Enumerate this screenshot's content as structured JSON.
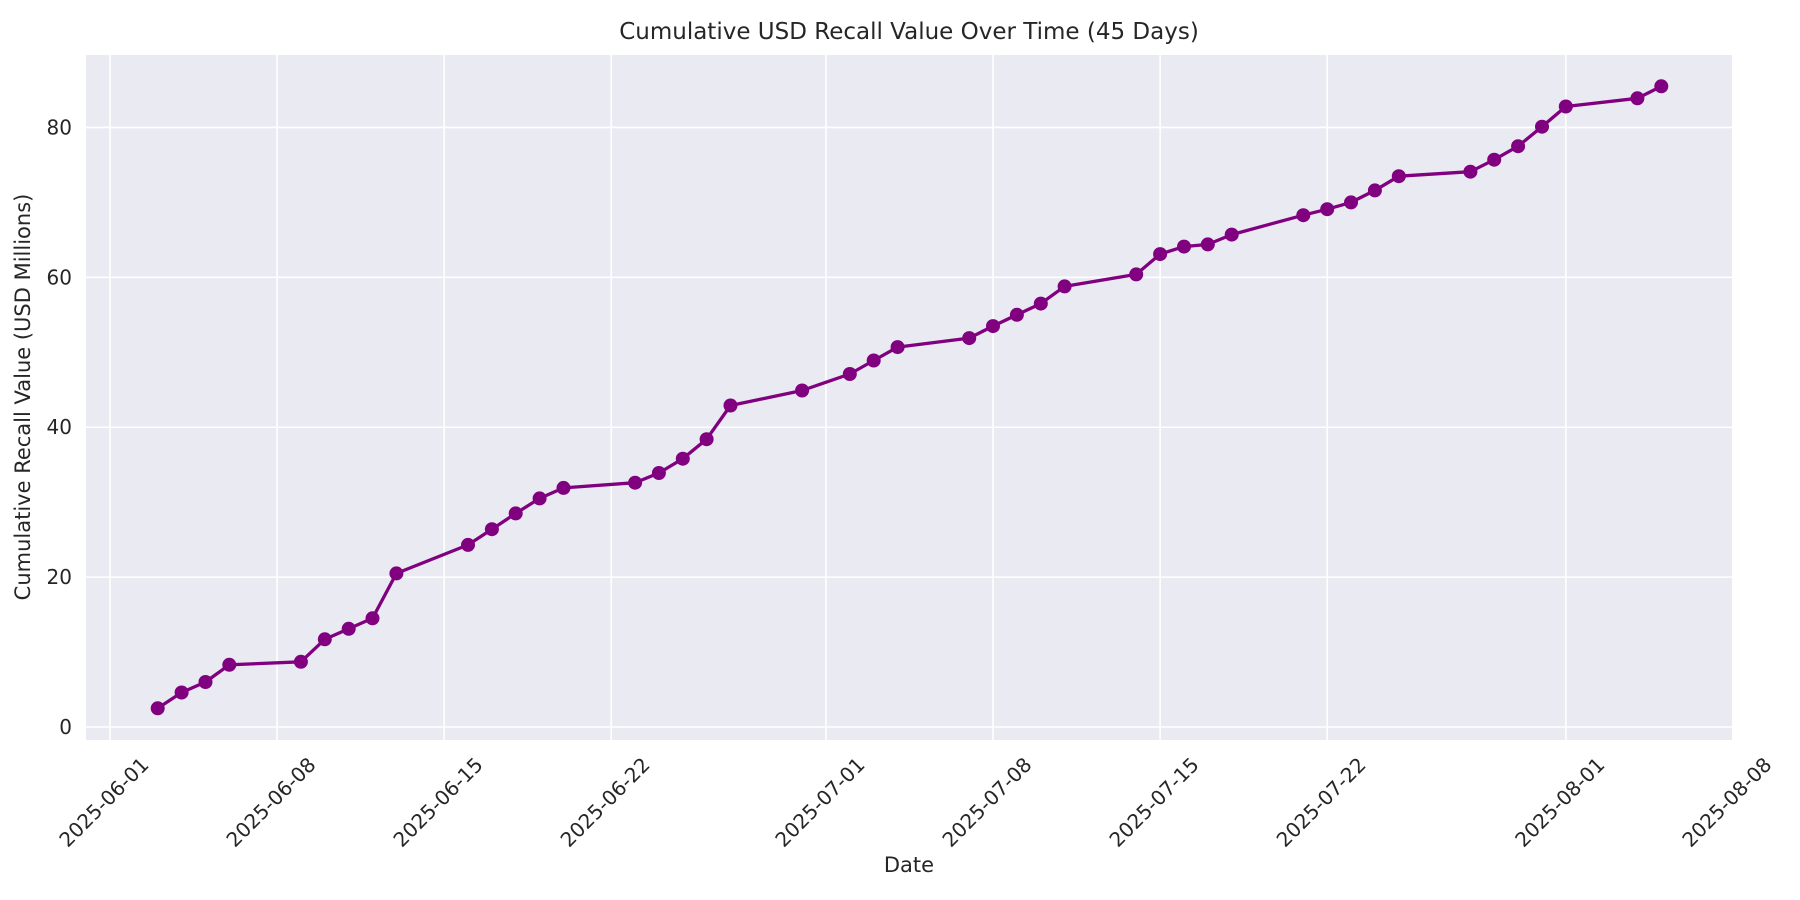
{
  "figure": {
    "title": "Cumulative USD Recall Value Over Time (45 Days)",
    "xlabel": "Date",
    "ylabel": "Cumulative Recall Value (USD Millions)"
  },
  "chart_data": {
    "type": "line",
    "title": "Cumulative USD Recall Value Over Time (45 Days)",
    "xlabel": "Date",
    "ylabel": "Cumulative Recall Value (USD Millions)",
    "grid": true,
    "legend": false,
    "style": "seaborn-darkgrid",
    "colors": {
      "line": "#800080",
      "marker": "#800080",
      "plot_background": "#EAEAF2",
      "gridline": "#FFFFFF",
      "text": "#262626",
      "figure_background": "#FFFFFF"
    },
    "x_tick_labels": [
      "2025-06-01",
      "2025-06-08",
      "2025-06-15",
      "2025-06-22",
      "2025-07-01",
      "2025-07-08",
      "2025-07-15",
      "2025-07-22",
      "2025-08-01",
      "2025-08-08"
    ],
    "y_ticks": [
      0,
      20,
      40,
      60,
      80
    ],
    "ylim": [
      -1.7,
      89.6
    ],
    "xlim_dates": [
      "2025-05-31",
      "2025-08-08"
    ],
    "x_tick_rotation_deg": 45,
    "series": [
      {
        "name": "cumulative_recall_value_usd_millions",
        "x": [
          "2025-06-03",
          "2025-06-04",
          "2025-06-05",
          "2025-06-06",
          "2025-06-09",
          "2025-06-10",
          "2025-06-11",
          "2025-06-12",
          "2025-06-13",
          "2025-06-16",
          "2025-06-17",
          "2025-06-18",
          "2025-06-19",
          "2025-06-20",
          "2025-06-23",
          "2025-06-24",
          "2025-06-25",
          "2025-06-26",
          "2025-06-27",
          "2025-06-30",
          "2025-07-02",
          "2025-07-03",
          "2025-07-04",
          "2025-07-07",
          "2025-07-08",
          "2025-07-09",
          "2025-07-10",
          "2025-07-11",
          "2025-07-14",
          "2025-07-15",
          "2025-07-16",
          "2025-07-17",
          "2025-07-18",
          "2025-07-21",
          "2025-07-22",
          "2025-07-23",
          "2025-07-24",
          "2025-07-25",
          "2025-07-28",
          "2025-07-29",
          "2025-07-30",
          "2025-07-31",
          "2025-08-01",
          "2025-08-04",
          "2025-08-05"
        ],
        "y": [
          2.5,
          4.6,
          6.0,
          8.3,
          8.7,
          11.7,
          13.1,
          14.5,
          20.5,
          24.3,
          26.4,
          28.5,
          30.5,
          31.9,
          32.6,
          33.9,
          35.8,
          38.4,
          42.9,
          44.9,
          47.1,
          48.9,
          50.7,
          51.9,
          53.5,
          55.0,
          56.5,
          58.8,
          60.4,
          63.1,
          64.1,
          64.4,
          65.7,
          68.3,
          69.1,
          70.0,
          71.6,
          73.5,
          74.1,
          75.7,
          77.5,
          80.1,
          82.8,
          83.9,
          85.5
        ]
      }
    ]
  }
}
